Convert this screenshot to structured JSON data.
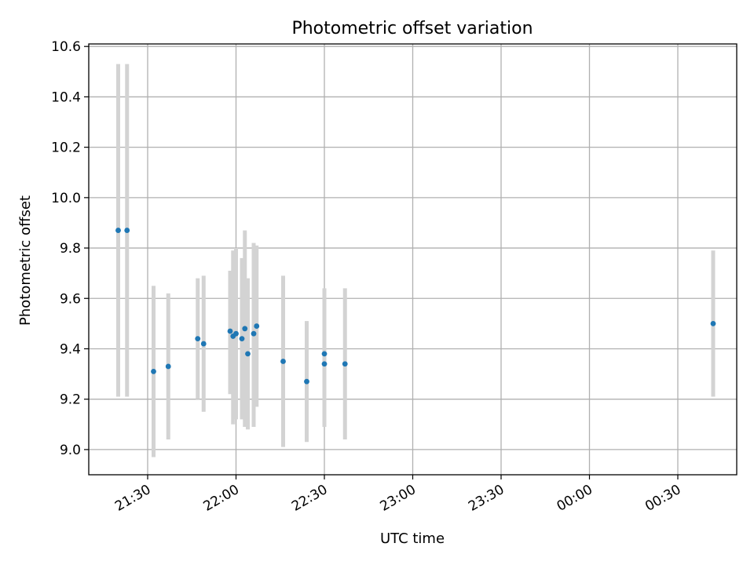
{
  "chart_data": {
    "type": "scatter",
    "title": "Photometric offset variation",
    "xlabel": "UTC time",
    "ylabel": "Photometric offset",
    "x_axis_kind": "datetime",
    "xlim": [
      "21:10",
      "00:50"
    ],
    "ylim": [
      8.9,
      10.61
    ],
    "grid": true,
    "x_ticks": [
      "21:30",
      "22:00",
      "22:30",
      "23:00",
      "23:30",
      "00:00",
      "00:30"
    ],
    "y_ticks": [
      "9.0",
      "9.2",
      "9.4",
      "9.6",
      "9.8",
      "10.0",
      "10.2",
      "10.4",
      "10.6"
    ],
    "series": [
      {
        "marker_color": "#1f77b4",
        "errorbar_color": "#d3d3d3",
        "points": [
          {
            "x": "21:20",
            "y": 9.87,
            "lo": 9.21,
            "hi": 10.53
          },
          {
            "x": "21:23",
            "y": 9.87,
            "lo": 9.21,
            "hi": 10.53
          },
          {
            "x": "21:32",
            "y": 9.31,
            "lo": 8.97,
            "hi": 9.65
          },
          {
            "x": "21:37",
            "y": 9.33,
            "lo": 9.04,
            "hi": 9.62
          },
          {
            "x": "21:47",
            "y": 9.44,
            "lo": 9.2,
            "hi": 9.68
          },
          {
            "x": "21:49",
            "y": 9.42,
            "lo": 9.15,
            "hi": 9.69
          },
          {
            "x": "21:58",
            "y": 9.47,
            "lo": 9.22,
            "hi": 9.71
          },
          {
            "x": "21:59",
            "y": 9.45,
            "lo": 9.1,
            "hi": 9.79
          },
          {
            "x": "22:00",
            "y": 9.46,
            "lo": 9.12,
            "hi": 9.8
          },
          {
            "x": "22:02",
            "y": 9.44,
            "lo": 9.12,
            "hi": 9.76
          },
          {
            "x": "22:03",
            "y": 9.48,
            "lo": 9.09,
            "hi": 9.87
          },
          {
            "x": "22:04",
            "y": 9.38,
            "lo": 9.08,
            "hi": 9.68
          },
          {
            "x": "22:06",
            "y": 9.46,
            "lo": 9.09,
            "hi": 9.82
          },
          {
            "x": "22:07",
            "y": 9.49,
            "lo": 9.17,
            "hi": 9.81
          },
          {
            "x": "22:16",
            "y": 9.35,
            "lo": 9.01,
            "hi": 9.69
          },
          {
            "x": "22:24",
            "y": 9.27,
            "lo": 9.03,
            "hi": 9.51
          },
          {
            "x": "22:30",
            "y": 9.34,
            "lo": 9.09,
            "hi": 9.59
          },
          {
            "x": "22:30",
            "y": 9.38,
            "lo": 9.12,
            "hi": 9.64
          },
          {
            "x": "22:37",
            "y": 9.34,
            "lo": 9.04,
            "hi": 9.64
          },
          {
            "x": "00:42",
            "y": 9.5,
            "lo": 9.21,
            "hi": 9.79
          }
        ]
      }
    ]
  }
}
